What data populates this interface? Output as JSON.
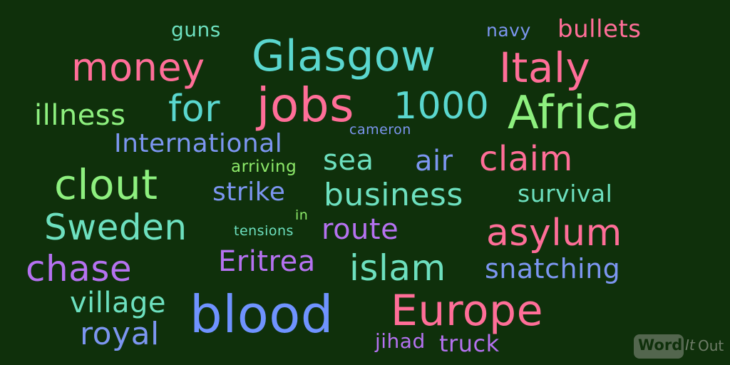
{
  "words": {
    "guns": "guns",
    "navy": "navy",
    "bullets": "bullets",
    "glasgow": "Glasgow",
    "money": "money",
    "italy": "Italy",
    "illness": "illness",
    "for": "for",
    "jobs": "jobs",
    "n1000": "1000",
    "africa": "Africa",
    "cameron": "cameron",
    "international": "International",
    "sea": "sea",
    "air": "air",
    "claim": "claim",
    "arriving": "arriving",
    "clout": "clout",
    "strike": "strike",
    "business": "business",
    "survival": "survival",
    "in": "in",
    "sweden": "Sweden",
    "tensions": "tensions",
    "route": "route",
    "asylum": "asylum",
    "chase": "chase",
    "eritrea": "Eritrea",
    "islam": "islam",
    "snatching": "snatching",
    "village": "village",
    "blood": "blood",
    "europe": "Europe",
    "royal": "royal",
    "jihad": "jihad",
    "truck": "truck"
  },
  "logo": {
    "word": "Word",
    "it": "It",
    "out": "Out"
  },
  "colors": {
    "background": "#0f300b",
    "mint": "#6de0bf",
    "teal": "#5ad7cf",
    "pink": "#ff6e98",
    "green": "#8ef07f",
    "blue": "#6f93ff",
    "lavender": "#b572f0",
    "light_green": "#8eea6a",
    "soft_blue": "#7c96f0"
  }
}
